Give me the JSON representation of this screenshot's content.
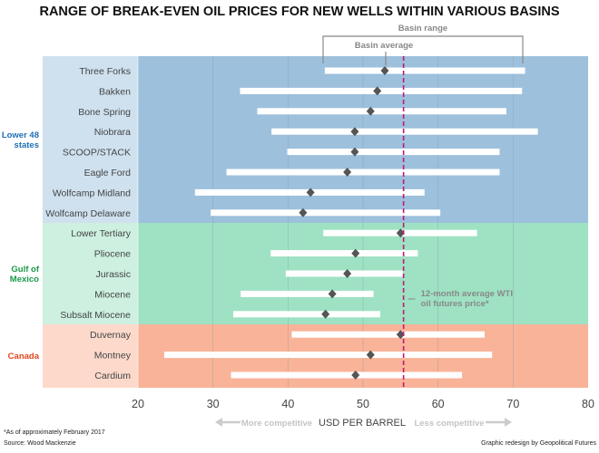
{
  "chart_data": {
    "type": "range-dot",
    "title": "RANGE OF BREAK-EVEN OIL PRICES FOR NEW WELLS WITHIN VARIOUS BASINS",
    "xlabel": "USD PER BARREL",
    "xlim": [
      20,
      80
    ],
    "xticks": [
      20,
      30,
      40,
      50,
      60,
      70,
      80
    ],
    "grid": true,
    "reference_line": {
      "value": 55.4,
      "label_line1": "12-month average WTI",
      "label_line2": "oil futures price*",
      "color": "#c2187a"
    },
    "legend": {
      "range_label": "Basin range",
      "average_label": "Basin average"
    },
    "direction_labels": {
      "left": "More competitive",
      "right": "Less competitive"
    },
    "groups": [
      {
        "name_line1": "Lower 48",
        "name_line2": "states",
        "color": "#1f6fb5",
        "band": "#9dc0dc",
        "label_band": "#cfe1ef",
        "basins": [
          {
            "name": "Three Forks",
            "min": 44.9,
            "max": 71.6,
            "avg": 52.9
          },
          {
            "name": "Bakken",
            "min": 33.6,
            "max": 71.2,
            "avg": 51.9
          },
          {
            "name": "Bone Spring",
            "min": 35.9,
            "max": 69.1,
            "avg": 51.0
          },
          {
            "name": "Niobrara",
            "min": 37.8,
            "max": 73.3,
            "avg": 48.9
          },
          {
            "name": "SCOOP/STACK",
            "min": 39.9,
            "max": 68.2,
            "avg": 48.9
          },
          {
            "name": "Eagle Ford",
            "min": 31.8,
            "max": 68.2,
            "avg": 47.9
          },
          {
            "name": "Wolfcamp Midland",
            "min": 27.6,
            "max": 58.2,
            "avg": 43.0
          },
          {
            "name": "Wolfcamp Delaware",
            "min": 29.7,
            "max": 60.3,
            "avg": 42.0
          }
        ]
      },
      {
        "name_line1": "Gulf of",
        "name_line2": "Mexico",
        "color": "#1a9a4a",
        "band": "#9ee2c3",
        "label_band": "#cdf0e0",
        "basins": [
          {
            "name": "Lower Tertiary",
            "min": 44.7,
            "max": 65.2,
            "avg": 55.0
          },
          {
            "name": "Pliocene",
            "min": 37.7,
            "max": 57.3,
            "avg": 49.0
          },
          {
            "name": "Jurassic",
            "min": 39.7,
            "max": 55.3,
            "avg": 47.9
          },
          {
            "name": "Miocene",
            "min": 33.7,
            "max": 51.4,
            "avg": 45.9
          },
          {
            "name": "Subsalt Miocene",
            "min": 32.7,
            "max": 52.3,
            "avg": 45.0
          }
        ]
      },
      {
        "name_line1": "Canada",
        "name_line2": "",
        "color": "#e0461c",
        "band": "#f8b398",
        "label_band": "#fcd9cb",
        "basins": [
          {
            "name": "Duvernay",
            "min": 40.5,
            "max": 66.2,
            "avg": 55.0
          },
          {
            "name": "Montney",
            "min": 23.5,
            "max": 67.2,
            "avg": 51.0
          },
          {
            "name": "Cardium",
            "min": 32.4,
            "max": 63.2,
            "avg": 49.0
          }
        ]
      }
    ]
  },
  "footer": {
    "note": "*As of approximately February 2017",
    "source": "Source: Wood Mackenzie",
    "credit": "Graphic redesign by Geopolitical Futures"
  }
}
